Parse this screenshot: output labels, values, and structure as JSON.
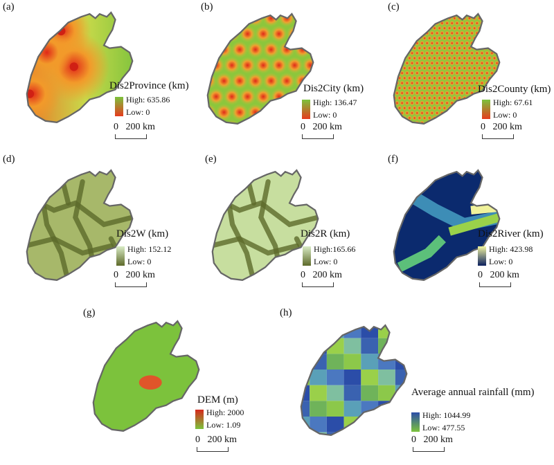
{
  "panels": [
    {
      "id": "a",
      "label": "(a)",
      "title": "Dis2Province (km)",
      "high": "High: 635.86",
      "low": "Low: 0",
      "high_color": "#7cc23c",
      "low_color": "#e63c1e"
    },
    {
      "id": "b",
      "label": "(b)",
      "title": "Dis2City (km)",
      "high": "High: 136.47",
      "low": "Low: 0",
      "high_color": "#7cc23c",
      "low_color": "#e63c1e"
    },
    {
      "id": "c",
      "label": "(c)",
      "title": "Dis2County (km)",
      "high": "High: 67.61",
      "low": "Low: 0",
      "high_color": "#7cc23c",
      "low_color": "#e63c1e"
    },
    {
      "id": "d",
      "label": "(d)",
      "title": "Dis2W (km)",
      "high": "High: 152.12",
      "low": "Low: 0",
      "high_color": "#d9ecc6",
      "low_color": "#5e6a2a"
    },
    {
      "id": "e",
      "label": "(e)",
      "title": "Dis2R (km)",
      "high": "High:165.66",
      "low": "Low: 0",
      "high_color": "#d9ecc6",
      "low_color": "#5e6a2a"
    },
    {
      "id": "f",
      "label": "(f)",
      "title": "Dis2River (km)",
      "high": "High: 423.98",
      "low": "Low: 0",
      "high_color": "#f2f5a0",
      "low_color": "#0b1f5e"
    },
    {
      "id": "g",
      "label": "(g)",
      "title": "DEM (m)",
      "high": "High: 2000",
      "low": "Low: 1.09",
      "high_color": "#d6281c",
      "low_color": "#7cc23c"
    },
    {
      "id": "h",
      "label": "(h)",
      "title": "Average annual rainfall (mm)",
      "high": "High: 1044.99",
      "low": "Low: 477.55",
      "high_color": "#2b4da8",
      "low_color": "#7cc23c"
    }
  ],
  "scale": {
    "zero": "0",
    "dist": "200 km"
  }
}
